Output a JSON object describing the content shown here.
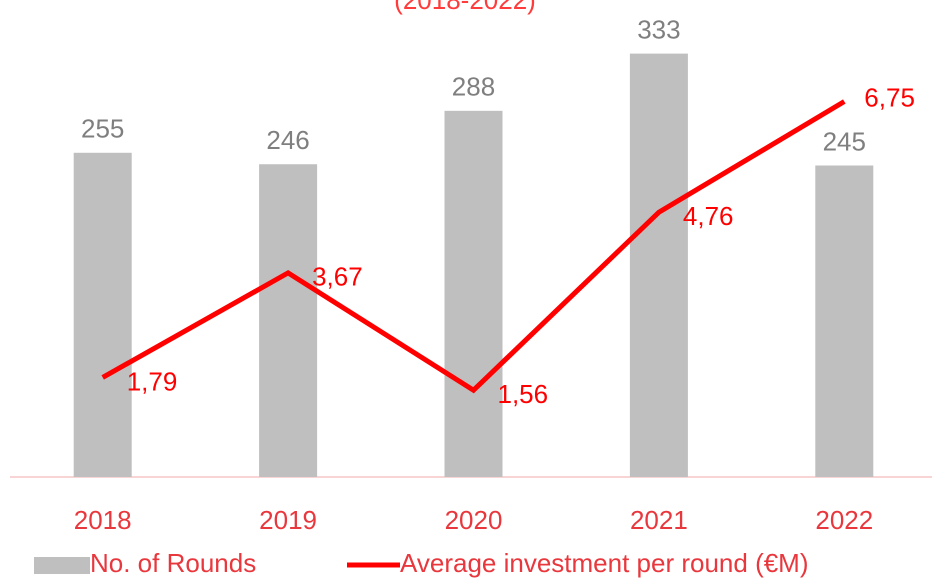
{
  "chart_data": {
    "type": "bar_line",
    "subtitle": "(2018-2022)",
    "categories": [
      "2018",
      "2019",
      "2020",
      "2021",
      "2022"
    ],
    "series": [
      {
        "name": "No. of Rounds",
        "type": "bar",
        "color": "#bfbfbf",
        "values": [
          255,
          246,
          288,
          333,
          245
        ]
      },
      {
        "name": "Average investment per round (€M)",
        "type": "line",
        "axis": "y2",
        "color": "#ff0000",
        "values": [
          1.79,
          3.67,
          1.56,
          4.76,
          6.75
        ],
        "value_labels": [
          "1,79",
          "3,67",
          "1,56",
          "4,76",
          "6,75"
        ]
      }
    ],
    "ylim": [
      0,
      350
    ],
    "y2lim": [
      0,
      8
    ],
    "legend": "bottom"
  }
}
